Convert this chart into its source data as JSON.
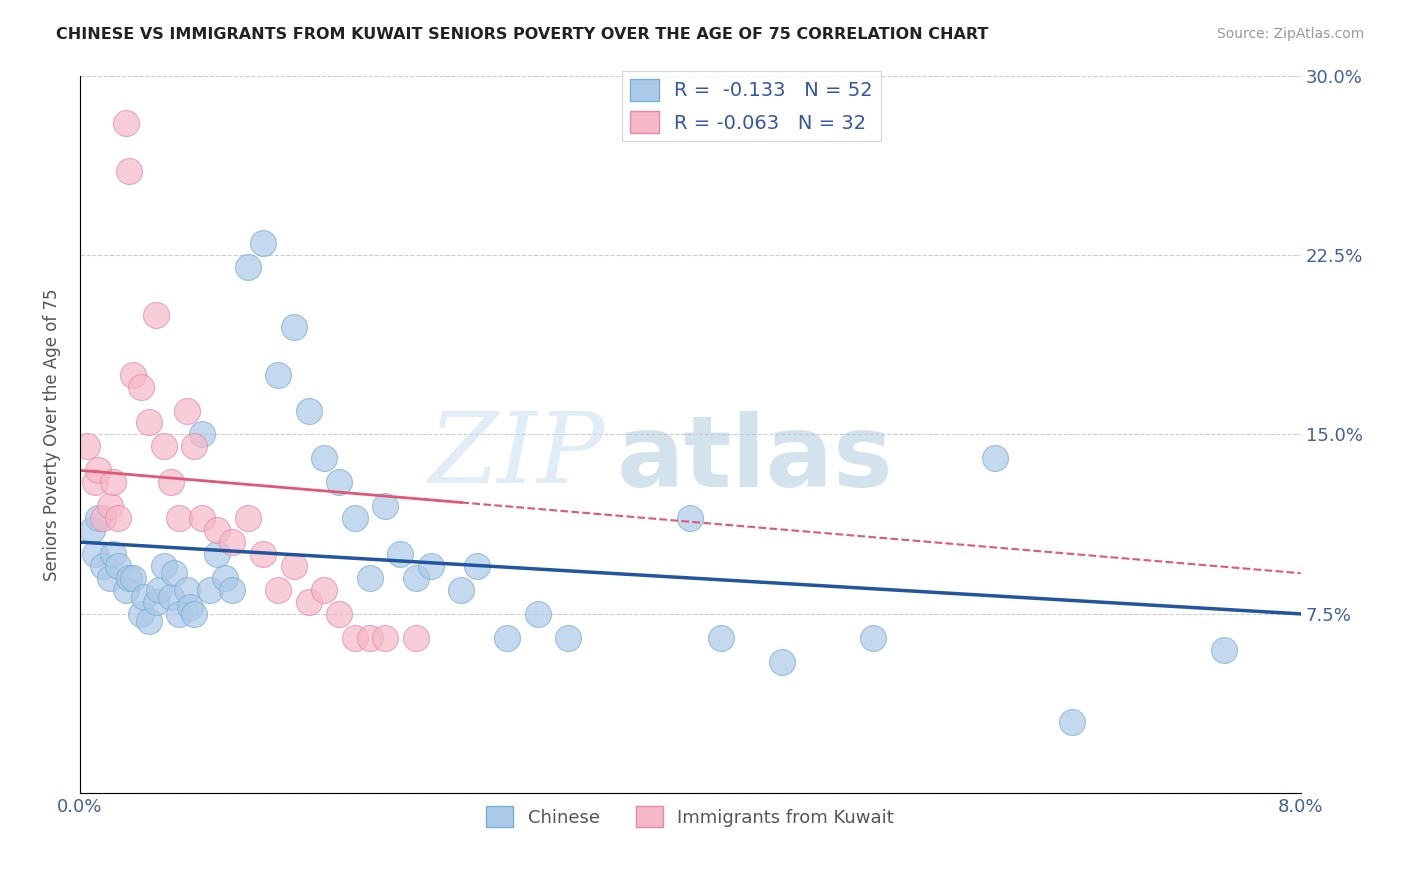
{
  "title": "CHINESE VS IMMIGRANTS FROM KUWAIT SENIORS POVERTY OVER THE AGE OF 75 CORRELATION CHART",
  "source": "Source: ZipAtlas.com",
  "ylabel": "Seniors Poverty Over the Age of 75",
  "y_tick_labels_right": [
    "",
    "7.5%",
    "15.0%",
    "22.5%",
    "30.0%"
  ],
  "xlim": [
    0.0,
    0.08
  ],
  "ylim": [
    0.0,
    0.3
  ],
  "chinese_R": -0.133,
  "chinese_N": 52,
  "kuwait_R": -0.063,
  "kuwait_N": 32,
  "chinese_color": "#abc9e8",
  "chinese_edge_color": "#7aaed4",
  "chinese_line_color": "#2255a0",
  "kuwait_color": "#f5b8c8",
  "kuwait_edge_color": "#e888a8",
  "kuwait_line_color": "#e05878",
  "watermark_zip": "ZIP",
  "watermark_atlas": "atlas",
  "legend_labels": [
    "Chinese",
    "Immigrants from Kuwait"
  ],
  "chinese_x": [
    0.0008,
    0.001,
    0.0012,
    0.0015,
    0.002,
    0.0022,
    0.0025,
    0.003,
    0.0032,
    0.0035,
    0.004,
    0.0042,
    0.0045,
    0.005,
    0.0052,
    0.0055,
    0.006,
    0.0062,
    0.0065,
    0.007,
    0.0072,
    0.0075,
    0.008,
    0.0085,
    0.009,
    0.0095,
    0.01,
    0.011,
    0.012,
    0.013,
    0.014,
    0.015,
    0.016,
    0.017,
    0.018,
    0.019,
    0.02,
    0.021,
    0.022,
    0.023,
    0.025,
    0.026,
    0.028,
    0.03,
    0.032,
    0.04,
    0.042,
    0.046,
    0.052,
    0.06,
    0.065,
    0.075
  ],
  "chinese_y": [
    0.11,
    0.1,
    0.115,
    0.095,
    0.09,
    0.1,
    0.095,
    0.085,
    0.09,
    0.09,
    0.075,
    0.082,
    0.072,
    0.08,
    0.085,
    0.095,
    0.082,
    0.092,
    0.075,
    0.085,
    0.078,
    0.075,
    0.15,
    0.085,
    0.1,
    0.09,
    0.085,
    0.22,
    0.23,
    0.175,
    0.195,
    0.16,
    0.14,
    0.13,
    0.115,
    0.09,
    0.12,
    0.1,
    0.09,
    0.095,
    0.085,
    0.095,
    0.065,
    0.075,
    0.065,
    0.115,
    0.065,
    0.055,
    0.065,
    0.14,
    0.03,
    0.06
  ],
  "kuwait_x": [
    0.0005,
    0.001,
    0.0012,
    0.0015,
    0.002,
    0.0022,
    0.0025,
    0.003,
    0.0032,
    0.0035,
    0.004,
    0.0045,
    0.005,
    0.0055,
    0.006,
    0.0065,
    0.007,
    0.0075,
    0.008,
    0.009,
    0.01,
    0.011,
    0.012,
    0.013,
    0.014,
    0.015,
    0.016,
    0.017,
    0.018,
    0.019,
    0.02,
    0.022
  ],
  "kuwait_y": [
    0.145,
    0.13,
    0.135,
    0.115,
    0.12,
    0.13,
    0.115,
    0.28,
    0.26,
    0.175,
    0.17,
    0.155,
    0.2,
    0.145,
    0.13,
    0.115,
    0.16,
    0.145,
    0.115,
    0.11,
    0.105,
    0.115,
    0.1,
    0.085,
    0.095,
    0.08,
    0.085,
    0.075,
    0.065,
    0.065,
    0.065,
    0.065
  ]
}
